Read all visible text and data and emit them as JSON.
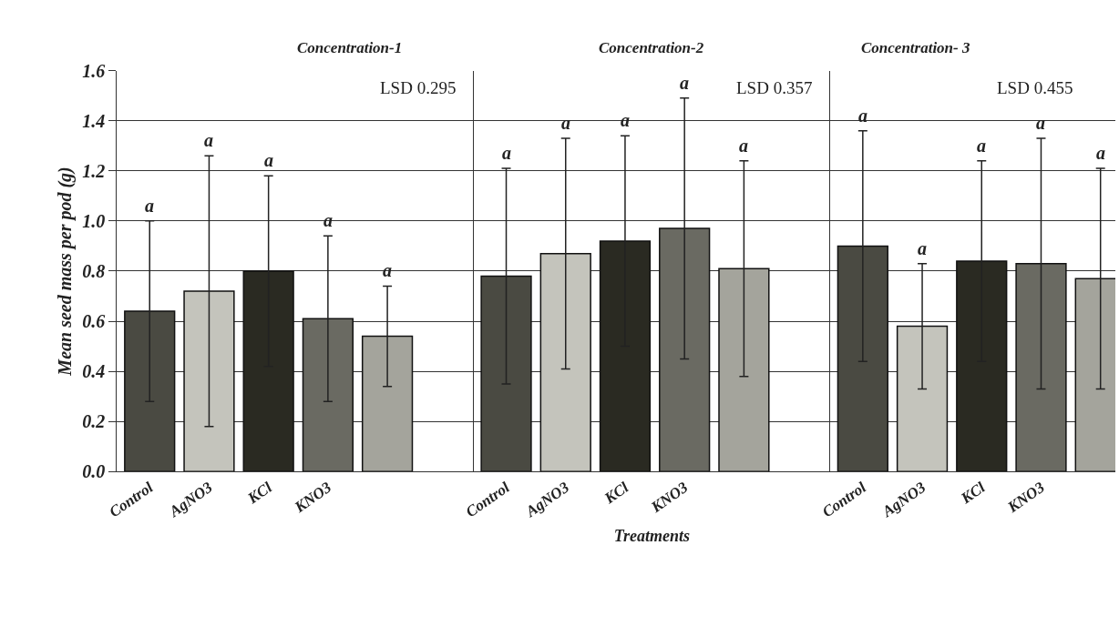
{
  "chart_data": [
    {
      "type": "bar",
      "title": "Concentration-1",
      "ylabel": "Mean seed mass per pod (g)",
      "categories": [
        "Control",
        "AgNO3",
        "KCl",
        "KNO3",
        null
      ],
      "values": [
        0.64,
        0.72,
        0.8,
        0.61,
        0.54
      ],
      "errors": [
        0.36,
        0.54,
        0.38,
        0.33,
        0.2
      ],
      "colors": [
        "#4a4a42",
        "#c4c4bc",
        "#2a2a22",
        "#6a6a62",
        "#a4a49c"
      ],
      "ylim": [
        0,
        1.6
      ],
      "yticks": [
        {
          "value": 0,
          "label": "0.0"
        },
        0.2,
        0.4,
        0.6,
        0.8,
        {
          "value": 1,
          "label": "1.0"
        },
        1.2,
        1.4,
        1.6
      ],
      "grid": "y",
      "annotations": [
        "LSD 0.295",
        {
          "text": "a",
          "x": "Control",
          "y": 1.0
        },
        {
          "text": "a",
          "x": "AgNO3",
          "y": 1.26
        },
        {
          "text": "a",
          "x": "KCl",
          "y": 1.18
        },
        {
          "text": "a",
          "x": "KNO3",
          "y": 0.94
        },
        "a"
      ]
    },
    {
      "type": "bar",
      "title": "Concentration-2",
      "xlabel": "Treatments",
      "categories": [
        "Control",
        "AgNO3",
        "KCl",
        "KNO3",
        null
      ],
      "values": [
        0.78,
        0.87,
        0.92,
        0.97,
        0.81
      ],
      "errors": [
        0.43,
        0.46,
        0.42,
        0.52,
        0.43
      ],
      "colors": [
        "#4a4a42",
        "#c4c4bc",
        "#2a2a22",
        "#6a6a62",
        "#a4a49c"
      ],
      "ylim": [
        0,
        1.6
      ],
      "yticks": [
        0,
        0.2,
        0.4,
        0.6,
        0.8,
        1,
        1.2,
        1.4,
        1.6
      ],
      "grid": "y",
      "tick_labels": "x",
      "annotations": [
        "LSD 0.357",
        {
          "text": "a",
          "x": "Control",
          "y": 1.21
        },
        {
          "text": "a",
          "x": "AgNO3",
          "y": 1.33
        },
        {
          "text": "a",
          "x": "KCl",
          "y": 1.34
        },
        {
          "text": "a",
          "x": "KNO3",
          "y": 1.49
        },
        "a"
      ]
    },
    {
      "type": "bar",
      "title": "Concentration- 3",
      "categories": [
        "Control",
        "AgNO3",
        "KCl",
        "KNO3",
        null
      ],
      "values": [
        0.9,
        0.58,
        0.84,
        0.83,
        0.77
      ],
      "errors": [
        0.46,
        0.25,
        0.4,
        0.5,
        0.44
      ],
      "colors": [
        "#4a4a42",
        "#c4c4bc",
        "#2a2a22",
        "#6a6a62",
        "#a4a49c"
      ],
      "ylim": [
        0,
        1.6
      ],
      "yticks": [
        0,
        0.2,
        0.4,
        0.6,
        0.8,
        1,
        1.2,
        1.4,
        1.6
      ],
      "grid": "y",
      "tick_labels": "x",
      "annotations": [
        "LSD 0.455",
        {
          "text": "a",
          "x": "Control",
          "y": 1.36
        },
        {
          "text": "a",
          "x": "AgNO3",
          "y": 0.83
        },
        {
          "text": "a",
          "x": "KCl",
          "y": 1.24
        },
        {
          "text": "a",
          "x": "KNO3",
          "y": 1.33
        },
        "a"
      ]
    }
  ]
}
